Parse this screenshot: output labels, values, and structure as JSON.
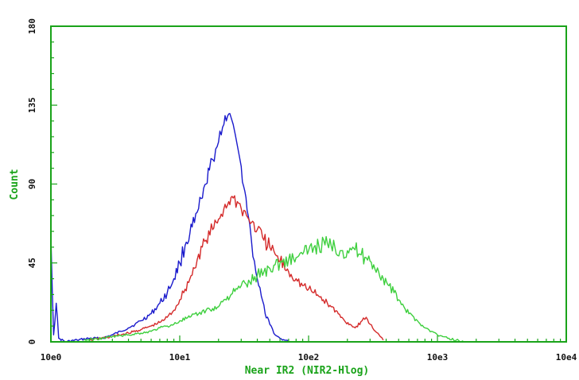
{
  "chart_data": {
    "type": "line",
    "xlabel": "Near IR2 (NIR2-Hlog)",
    "ylabel": "Count",
    "x_scale": "log",
    "xlim": [
      1,
      10000
    ],
    "ylim": [
      0,
      180
    ],
    "x_ticks": [
      {
        "value": 1,
        "label": "10e0"
      },
      {
        "value": 10,
        "label": "10e1"
      },
      {
        "value": 100,
        "label": "10e2"
      },
      {
        "value": 1000,
        "label": "10e3"
      },
      {
        "value": 10000,
        "label": "10e4"
      }
    ],
    "y_ticks": [
      {
        "value": 0,
        "label": "0"
      },
      {
        "value": 45,
        "label": "45"
      },
      {
        "value": 90,
        "label": "90"
      },
      {
        "value": 135,
        "label": "135"
      },
      {
        "value": 180,
        "label": "180"
      }
    ],
    "grid": false,
    "frame_color": "#1aa31a",
    "series": [
      {
        "color": "#1a1acc",
        "points": [
          [
            1.0,
            60
          ],
          [
            1.05,
            4
          ],
          [
            1.1,
            22
          ],
          [
            1.15,
            2
          ],
          [
            1.3,
            0
          ],
          [
            1.6,
            1
          ],
          [
            2,
            2
          ],
          [
            2.5,
            2
          ],
          [
            3,
            4
          ],
          [
            3.5,
            6
          ],
          [
            4,
            8
          ],
          [
            4.5,
            10
          ],
          [
            5,
            12
          ],
          [
            6,
            16
          ],
          [
            7,
            22
          ],
          [
            8,
            28
          ],
          [
            9,
            36
          ],
          [
            10,
            45
          ],
          [
            11,
            55
          ],
          [
            12,
            62
          ],
          [
            13,
            68
          ],
          [
            14,
            76
          ],
          [
            15,
            82
          ],
          [
            16,
            90
          ],
          [
            17,
            98
          ],
          [
            18,
            104
          ],
          [
            19,
            110
          ],
          [
            20,
            114
          ],
          [
            21,
            118
          ],
          [
            22,
            124
          ],
          [
            23,
            126
          ],
          [
            24,
            130
          ],
          [
            25,
            128
          ],
          [
            26,
            124
          ],
          [
            27,
            118
          ],
          [
            28,
            112
          ],
          [
            29,
            106
          ],
          [
            30,
            100
          ],
          [
            32,
            86
          ],
          [
            34,
            72
          ],
          [
            36,
            58
          ],
          [
            38,
            46
          ],
          [
            40,
            36
          ],
          [
            43,
            26
          ],
          [
            46,
            16
          ],
          [
            50,
            10
          ],
          [
            55,
            4
          ],
          [
            60,
            2
          ],
          [
            65,
            1
          ],
          [
            70,
            0
          ]
        ]
      },
      {
        "color": "#d42a2a",
        "points": [
          [
            2,
            1
          ],
          [
            3,
            3
          ],
          [
            4,
            5
          ],
          [
            5,
            7
          ],
          [
            6,
            9
          ],
          [
            7,
            11
          ],
          [
            8,
            14
          ],
          [
            9,
            18
          ],
          [
            10,
            24
          ],
          [
            11,
            30
          ],
          [
            12,
            36
          ],
          [
            13,
            42
          ],
          [
            14,
            50
          ],
          [
            16,
            58
          ],
          [
            18,
            64
          ],
          [
            20,
            70
          ],
          [
            22,
            76
          ],
          [
            24,
            80
          ],
          [
            26,
            82
          ],
          [
            28,
            80
          ],
          [
            30,
            76
          ],
          [
            33,
            72
          ],
          [
            36,
            68
          ],
          [
            40,
            64
          ],
          [
            45,
            58
          ],
          [
            50,
            54
          ],
          [
            55,
            50
          ],
          [
            60,
            46
          ],
          [
            70,
            40
          ],
          [
            80,
            36
          ],
          [
            90,
            32
          ],
          [
            100,
            30
          ],
          [
            110,
            28
          ],
          [
            120,
            26
          ],
          [
            130,
            24
          ],
          [
            140,
            22
          ],
          [
            150,
            20
          ],
          [
            170,
            16
          ],
          [
            190,
            12
          ],
          [
            210,
            10
          ],
          [
            230,
            8
          ],
          [
            260,
            12
          ],
          [
            280,
            14
          ],
          [
            300,
            10
          ],
          [
            330,
            6
          ],
          [
            360,
            3
          ],
          [
            380,
            1
          ]
        ]
      },
      {
        "color": "#3ecf3e",
        "points": [
          [
            1.8,
            1
          ],
          [
            2.5,
            2
          ],
          [
            3,
            3
          ],
          [
            4,
            4
          ],
          [
            5,
            5
          ],
          [
            6,
            6
          ],
          [
            7,
            8
          ],
          [
            8,
            9
          ],
          [
            9,
            10
          ],
          [
            10,
            12
          ],
          [
            12,
            14
          ],
          [
            14,
            16
          ],
          [
            16,
            18
          ],
          [
            18,
            19
          ],
          [
            20,
            20
          ],
          [
            22,
            24
          ],
          [
            25,
            27
          ],
          [
            28,
            30
          ],
          [
            30,
            32
          ],
          [
            35,
            34
          ],
          [
            40,
            38
          ],
          [
            45,
            40
          ],
          [
            50,
            42
          ],
          [
            55,
            44
          ],
          [
            60,
            45
          ],
          [
            70,
            47
          ],
          [
            80,
            48
          ],
          [
            90,
            50
          ],
          [
            100,
            52
          ],
          [
            110,
            54
          ],
          [
            120,
            55
          ],
          [
            140,
            56
          ],
          [
            160,
            54
          ],
          [
            180,
            52
          ],
          [
            200,
            52
          ],
          [
            220,
            54
          ],
          [
            250,
            50
          ],
          [
            280,
            48
          ],
          [
            300,
            46
          ],
          [
            320,
            44
          ],
          [
            350,
            40
          ],
          [
            380,
            36
          ],
          [
            420,
            32
          ],
          [
            460,
            28
          ],
          [
            500,
            24
          ],
          [
            550,
            20
          ],
          [
            600,
            16
          ],
          [
            700,
            12
          ],
          [
            800,
            8
          ],
          [
            900,
            6
          ],
          [
            1000,
            4
          ],
          [
            1100,
            3
          ],
          [
            1200,
            2
          ],
          [
            1400,
            1
          ],
          [
            1600,
            0
          ]
        ]
      }
    ]
  }
}
